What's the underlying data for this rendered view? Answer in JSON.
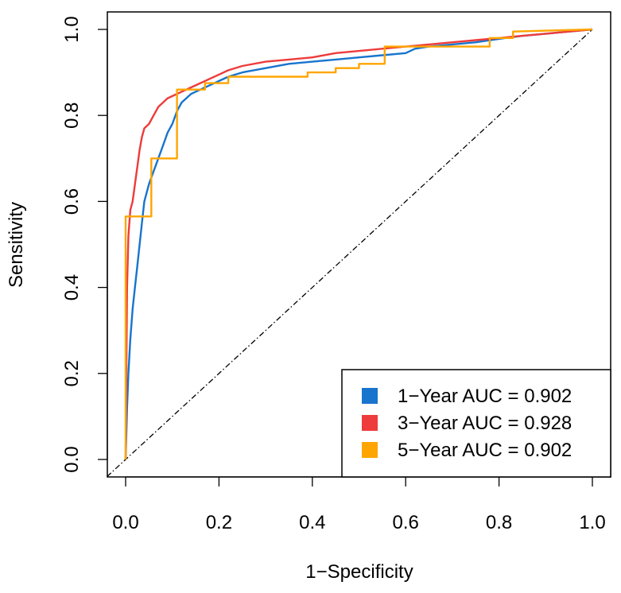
{
  "chart_data": {
    "type": "line",
    "title": "",
    "xlabel": "1−Specificity",
    "ylabel": "Sensitivity",
    "xlim": [
      0,
      1
    ],
    "ylim": [
      0,
      1
    ],
    "x_ticks": [
      "0.0",
      "0.2",
      "0.4",
      "0.6",
      "0.8",
      "1.0"
    ],
    "y_ticks": [
      "0.0",
      "0.2",
      "0.4",
      "0.6",
      "0.8",
      "1.0"
    ],
    "grid": false,
    "legend_position": "bottom-right",
    "reference_line": {
      "x": [
        0,
        1
      ],
      "y": [
        0,
        1
      ],
      "style": "dash-dot"
    },
    "series": [
      {
        "name": "1−Year AUC = 0.902",
        "color": "#1874CD",
        "x": [
          0,
          0.003,
          0.006,
          0.01,
          0.015,
          0.02,
          0.025,
          0.03,
          0.035,
          0.04,
          0.05,
          0.06,
          0.07,
          0.08,
          0.09,
          0.1,
          0.11,
          0.12,
          0.14,
          0.16,
          0.18,
          0.2,
          0.22,
          0.25,
          0.3,
          0.35,
          0.4,
          0.45,
          0.5,
          0.55,
          0.6,
          0.62,
          0.65,
          0.7,
          0.75,
          0.8,
          0.85,
          0.9,
          0.95,
          1.0
        ],
        "y": [
          0,
          0.12,
          0.2,
          0.28,
          0.35,
          0.4,
          0.45,
          0.5,
          0.55,
          0.6,
          0.64,
          0.67,
          0.7,
          0.73,
          0.76,
          0.78,
          0.81,
          0.83,
          0.85,
          0.86,
          0.87,
          0.88,
          0.89,
          0.9,
          0.91,
          0.92,
          0.925,
          0.93,
          0.935,
          0.94,
          0.945,
          0.955,
          0.96,
          0.965,
          0.97,
          0.978,
          0.985,
          0.99,
          0.995,
          1.0
        ]
      },
      {
        "name": "3−Year AUC = 0.928",
        "color": "#EE3B3B",
        "x": [
          0,
          0.003,
          0.006,
          0.01,
          0.015,
          0.02,
          0.025,
          0.03,
          0.035,
          0.04,
          0.05,
          0.06,
          0.07,
          0.08,
          0.09,
          0.1,
          0.12,
          0.14,
          0.16,
          0.18,
          0.2,
          0.22,
          0.25,
          0.3,
          0.35,
          0.4,
          0.45,
          0.5,
          0.55,
          0.6,
          0.65,
          0.7,
          0.75,
          0.8,
          0.85,
          0.9,
          0.95,
          1.0
        ],
        "y": [
          0,
          0.4,
          0.52,
          0.58,
          0.6,
          0.64,
          0.68,
          0.72,
          0.75,
          0.77,
          0.78,
          0.8,
          0.82,
          0.83,
          0.84,
          0.845,
          0.855,
          0.865,
          0.875,
          0.885,
          0.895,
          0.905,
          0.915,
          0.925,
          0.93,
          0.935,
          0.945,
          0.95,
          0.955,
          0.96,
          0.965,
          0.97,
          0.975,
          0.98,
          0.985,
          0.99,
          0.995,
          1.0
        ]
      },
      {
        "name": "5−Year AUC = 0.902",
        "color": "#FFA500",
        "x": [
          0,
          0,
          0.055,
          0.055,
          0.11,
          0.11,
          0.17,
          0.17,
          0.22,
          0.22,
          0.39,
          0.39,
          0.45,
          0.45,
          0.5,
          0.5,
          0.555,
          0.555,
          0.78,
          0.78,
          0.83,
          0.83,
          1.0
        ],
        "y": [
          0,
          0.565,
          0.565,
          0.7,
          0.7,
          0.86,
          0.86,
          0.875,
          0.875,
          0.89,
          0.89,
          0.9,
          0.9,
          0.91,
          0.91,
          0.92,
          0.92,
          0.96,
          0.96,
          0.98,
          0.98,
          0.995,
          1.0
        ]
      }
    ]
  }
}
